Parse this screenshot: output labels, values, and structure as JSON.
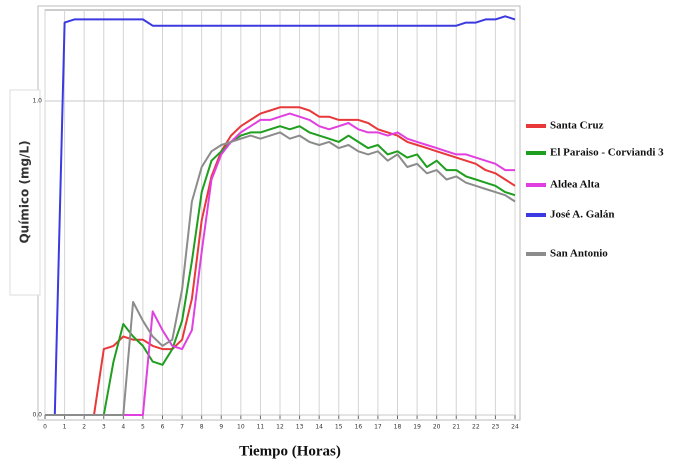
{
  "chart_data": {
    "type": "line",
    "ylabel": "Químico (mg/L)",
    "xlabel": "Tiempo (Horas)",
    "x": [
      0,
      0.5,
      1,
      1.5,
      2,
      2.5,
      3,
      3.5,
      4,
      4.5,
      5,
      5.5,
      6,
      6.5,
      7,
      7.5,
      8,
      8.5,
      9,
      9.5,
      10,
      10.5,
      11,
      11.5,
      12,
      12.5,
      13,
      13.5,
      14,
      14.5,
      15,
      15.5,
      16,
      16.5,
      17,
      17.5,
      18,
      18.5,
      19,
      19.5,
      20,
      20.5,
      21,
      21.5,
      22,
      22.5,
      23,
      23.5,
      24
    ],
    "xlim": [
      0,
      24
    ],
    "xticks": [
      0,
      1,
      2,
      3,
      4,
      5,
      6,
      7,
      8,
      9,
      10,
      11,
      12,
      13,
      14,
      15,
      16,
      17,
      18,
      19,
      20,
      21,
      22,
      23,
      24
    ],
    "ylim": [
      0,
      1.29
    ],
    "yticks": [
      {
        "value": 0,
        "label": "0.0"
      },
      {
        "value": 1,
        "label": "1.0"
      }
    ],
    "grid": true,
    "series": [
      {
        "name": "Santa Cruz",
        "color": "#e8383a",
        "values": [
          0,
          0,
          0,
          0,
          0,
          0,
          0.21,
          0.22,
          0.25,
          0.24,
          0.24,
          0.22,
          0.21,
          0.21,
          0.24,
          0.37,
          0.62,
          0.76,
          0.84,
          0.89,
          0.92,
          0.94,
          0.96,
          0.97,
          0.98,
          0.98,
          0.98,
          0.97,
          0.95,
          0.95,
          0.94,
          0.94,
          0.94,
          0.93,
          0.91,
          0.9,
          0.89,
          0.87,
          0.86,
          0.85,
          0.84,
          0.83,
          0.82,
          0.81,
          0.8,
          0.78,
          0.77,
          0.75,
          0.73
        ]
      },
      {
        "name": "El Paraiso - Corviandi 3",
        "color": "#1f9e1f",
        "values": [
          0,
          0,
          0,
          0,
          0,
          0,
          0,
          0.17,
          0.29,
          0.25,
          0.22,
          0.17,
          0.16,
          0.21,
          0.3,
          0.49,
          0.71,
          0.81,
          0.84,
          0.87,
          0.89,
          0.9,
          0.9,
          0.91,
          0.92,
          0.91,
          0.92,
          0.9,
          0.89,
          0.88,
          0.87,
          0.89,
          0.87,
          0.85,
          0.86,
          0.83,
          0.84,
          0.82,
          0.83,
          0.79,
          0.81,
          0.78,
          0.78,
          0.76,
          0.75,
          0.74,
          0.73,
          0.71,
          0.7
        ]
      },
      {
        "name": "Aldea Alta",
        "color": "#e040e0",
        "values": [
          0,
          0,
          0,
          0,
          0,
          0,
          0,
          0,
          0,
          0,
          0,
          0.33,
          0.27,
          0.22,
          0.21,
          0.27,
          0.52,
          0.75,
          0.83,
          0.87,
          0.9,
          0.92,
          0.94,
          0.94,
          0.95,
          0.96,
          0.95,
          0.94,
          0.92,
          0.91,
          0.92,
          0.93,
          0.91,
          0.9,
          0.9,
          0.89,
          0.9,
          0.88,
          0.87,
          0.86,
          0.85,
          0.84,
          0.83,
          0.83,
          0.82,
          0.81,
          0.8,
          0.78,
          0.78
        ]
      },
      {
        "name": "José A. Galán",
        "color": "#3a3ae0",
        "values": [
          0,
          0,
          1.25,
          1.26,
          1.26,
          1.26,
          1.26,
          1.26,
          1.26,
          1.26,
          1.26,
          1.24,
          1.24,
          1.24,
          1.24,
          1.24,
          1.24,
          1.24,
          1.24,
          1.24,
          1.24,
          1.24,
          1.24,
          1.24,
          1.24,
          1.24,
          1.24,
          1.24,
          1.24,
          1.24,
          1.24,
          1.24,
          1.24,
          1.24,
          1.24,
          1.24,
          1.24,
          1.24,
          1.24,
          1.24,
          1.24,
          1.24,
          1.24,
          1.25,
          1.25,
          1.26,
          1.26,
          1.27,
          1.26
        ]
      },
      {
        "name": "San Antonio",
        "color": "#8c8c8c",
        "values": [
          0,
          0,
          0,
          0,
          0,
          0,
          0,
          0,
          0,
          0.36,
          0.3,
          0.25,
          0.22,
          0.24,
          0.4,
          0.68,
          0.79,
          0.84,
          0.86,
          0.87,
          0.88,
          0.89,
          0.88,
          0.89,
          0.9,
          0.88,
          0.89,
          0.87,
          0.86,
          0.87,
          0.85,
          0.86,
          0.84,
          0.83,
          0.84,
          0.81,
          0.83,
          0.79,
          0.8,
          0.77,
          0.78,
          0.75,
          0.76,
          0.74,
          0.73,
          0.72,
          0.71,
          0.7,
          0.68
        ]
      }
    ]
  }
}
